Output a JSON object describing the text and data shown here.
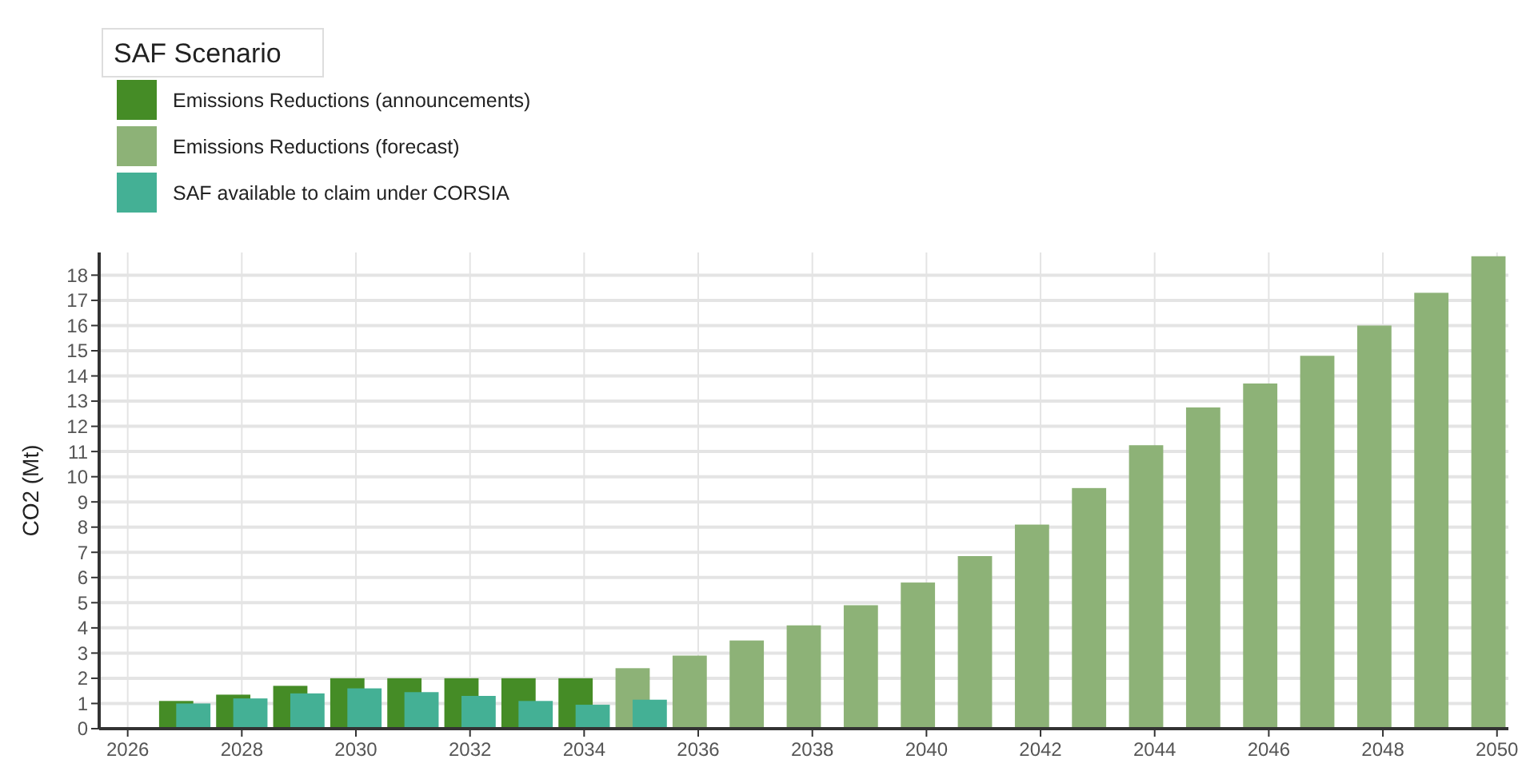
{
  "chart_data": {
    "type": "bar",
    "ylabel": "CO2 (Mt)",
    "legend_title": "SAF Scenario",
    "legend": "top left",
    "grid": true,
    "xlim": [
      2025.5,
      2050.2
    ],
    "xticks": [
      2026,
      2028,
      2030,
      2032,
      2034,
      2036,
      2038,
      2040,
      2042,
      2044,
      2046,
      2048,
      2050
    ],
    "ylim": [
      0,
      18.9
    ],
    "yticks": [
      0,
      1,
      2,
      3,
      4,
      5,
      6,
      7,
      8,
      9,
      10,
      11,
      12,
      13,
      14,
      15,
      16,
      17,
      18
    ],
    "series": [
      {
        "name": "Emissions Reductions (announcements)",
        "color": "#458c26",
        "x": [
          2027,
          2028,
          2029,
          2030,
          2031,
          2032,
          2033,
          2034
        ],
        "values": [
          1.1,
          1.35,
          1.7,
          2.0,
          2.0,
          2.0,
          2.0,
          2.0
        ]
      },
      {
        "name": "Emissions Reductions (forecast)",
        "color": "#8db277",
        "x": [
          2035,
          2036,
          2037,
          2038,
          2039,
          2040,
          2041,
          2042,
          2043,
          2044,
          2045,
          2046,
          2047,
          2048,
          2049,
          2050
        ],
        "values": [
          2.4,
          2.9,
          3.5,
          4.1,
          4.9,
          5.8,
          6.85,
          8.1,
          9.55,
          11.25,
          12.75,
          13.7,
          14.8,
          16.0,
          17.3,
          18.75
        ]
      },
      {
        "name": "SAF available to claim under CORSIA",
        "color": "#44b095",
        "x": [
          2027,
          2028,
          2029,
          2030,
          2031,
          2032,
          2033,
          2034,
          2035
        ],
        "values": [
          1.0,
          1.2,
          1.4,
          1.6,
          1.45,
          1.3,
          1.1,
          0.95,
          1.15
        ]
      }
    ]
  }
}
